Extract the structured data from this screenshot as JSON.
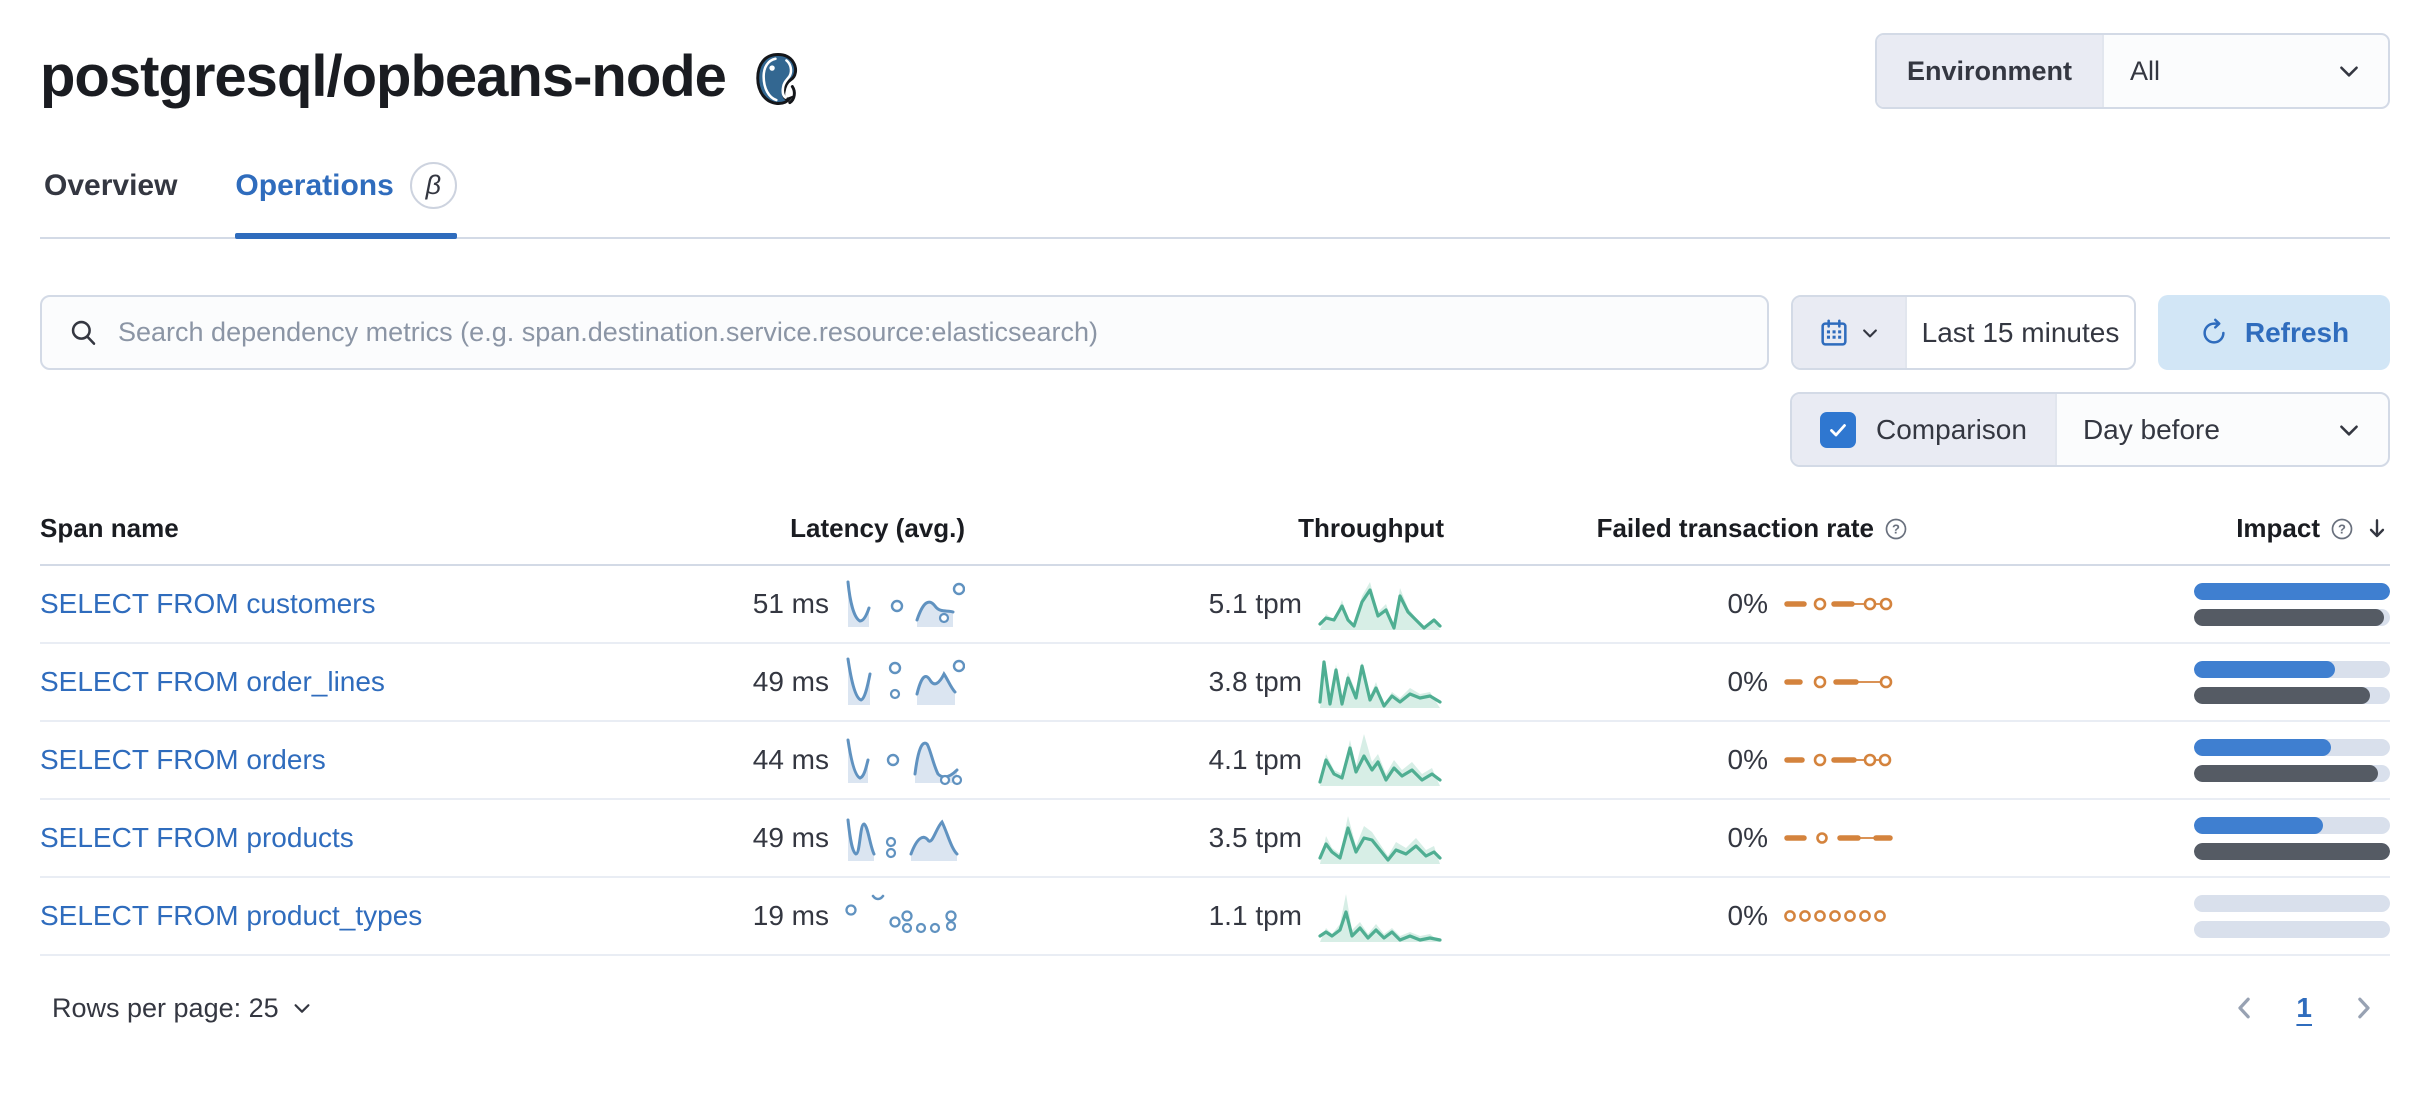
{
  "page": {
    "title": "postgresql/opbeans-node",
    "title_icon": "postgresql-elephant-logo"
  },
  "environment_filter": {
    "label": "Environment",
    "value": "All"
  },
  "tabs": [
    {
      "label": "Overview",
      "active": false
    },
    {
      "label": "Operations",
      "active": true,
      "badge": "β"
    }
  ],
  "search": {
    "placeholder": "Search dependency metrics (e.g. span.destination.service.resource:elasticsearch)"
  },
  "time_picker": {
    "value": "Last 15 minutes"
  },
  "refresh_button": {
    "label": "Refresh"
  },
  "comparison": {
    "label": "Comparison",
    "checked": true,
    "value": "Day before"
  },
  "table": {
    "columns": {
      "span_name": "Span name",
      "latency": "Latency (avg.)",
      "throughput": "Throughput",
      "failed_rate": "Failed transaction rate",
      "impact": "Impact"
    },
    "rows": [
      {
        "name": "SELECT FROM customers",
        "latency": "51 ms",
        "throughput": "5.1 tpm",
        "failed_rate": "0%",
        "impact_current_pct": 100,
        "impact_previous_pct": 97
      },
      {
        "name": "SELECT FROM order_lines",
        "latency": "49 ms",
        "throughput": "3.8 tpm",
        "failed_rate": "0%",
        "impact_current_pct": 72,
        "impact_previous_pct": 90
      },
      {
        "name": "SELECT FROM orders",
        "latency": "44 ms",
        "throughput": "4.1 tpm",
        "failed_rate": "0%",
        "impact_current_pct": 70,
        "impact_previous_pct": 94
      },
      {
        "name": "SELECT FROM products",
        "latency": "49 ms",
        "throughput": "3.5 tpm",
        "failed_rate": "0%",
        "impact_current_pct": 66,
        "impact_previous_pct": 100
      },
      {
        "name": "SELECT FROM product_types",
        "latency": "19 ms",
        "throughput": "1.1 tpm",
        "failed_rate": "0%",
        "impact_current_pct": 0,
        "impact_previous_pct": 0
      }
    ]
  },
  "footer": {
    "rows_per_page": "Rows per page: 25",
    "page_number": "1"
  },
  "icons": {
    "search": "magnifier",
    "calendar": "calendar-grid",
    "refresh": "circular-arrow",
    "help": "question-in-circle",
    "sort_desc": "arrow-down",
    "chevron": "chevron-down"
  },
  "colors": {
    "link_blue": "#2f6cbd",
    "refresh_bg": "#d2e6f6",
    "checkbox_blue": "#2f77d0",
    "latency_sparkline": "#6092c0",
    "throughput_sparkline": "#54b399",
    "failed_rate_sparkline": "#d4833d",
    "impact_current": "#3f7fd0",
    "impact_previous": "#555b64",
    "border": "#d3dae6"
  }
}
